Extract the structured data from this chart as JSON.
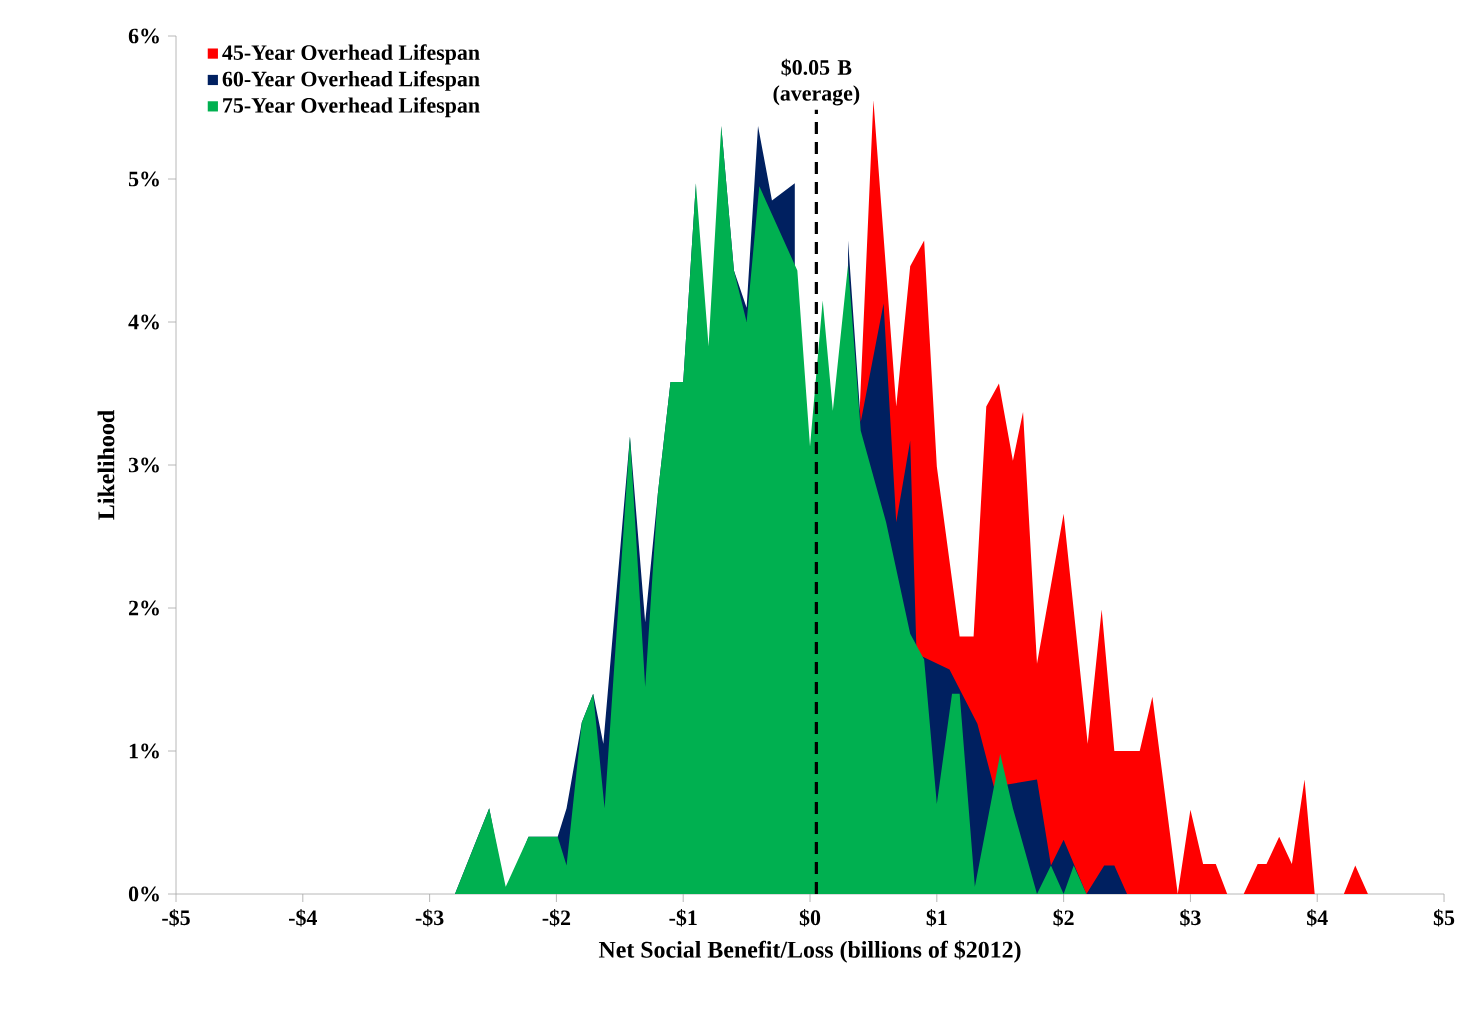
{
  "chart_data": {
    "type": "area",
    "xlabel": "Net Social Benefit/Loss (billions of $2012)",
    "ylabel": "Likelihood",
    "xlim": [
      -5,
      5
    ],
    "xticks": [
      {
        "value": -5,
        "label": "-$5"
      },
      {
        "value": -4,
        "label": "-$4"
      },
      {
        "value": -3,
        "label": "-$3"
      },
      {
        "value": -2,
        "label": "-$2"
      },
      {
        "value": -1,
        "label": "-$1"
      },
      {
        "value": 0,
        "label": "$0"
      },
      {
        "value": 1,
        "label": "$1"
      },
      {
        "value": 2,
        "label": "$2"
      },
      {
        "value": 3,
        "label": "$3"
      },
      {
        "value": 4,
        "label": "$4"
      },
      {
        "value": 5,
        "label": "$5"
      }
    ],
    "ylim": [
      0,
      6
    ],
    "yticks": [
      {
        "value": 0,
        "label": "0%"
      },
      {
        "value": 1,
        "label": "1%"
      },
      {
        "value": 2,
        "label": "2%"
      },
      {
        "value": 3,
        "label": "3%"
      },
      {
        "value": 4,
        "label": "4%"
      },
      {
        "value": 5,
        "label": "5%"
      },
      {
        "value": 6,
        "label": "6%"
      }
    ],
    "legend": "top left",
    "grid": false,
    "ref_lines": [
      {
        "axis": "x",
        "value": 0.05,
        "label": "$0.05 B (average)",
        "color": "#000000",
        "line_style": "dashed"
      }
    ],
    "series": [
      {
        "name": "45-Year Overhead Lifespan",
        "color": "#ff0000",
        "x": [
          0.39,
          0.5,
          0.68,
          0.79,
          0.9,
          1.0,
          1.18,
          1.29,
          1.39,
          1.49,
          1.6,
          1.68,
          1.79,
          2.0,
          2.19,
          2.3,
          2.4,
          2.6,
          2.7,
          2.9,
          3.0,
          3.1,
          3.2,
          3.29,
          3.42,
          3.53,
          3.6,
          3.7,
          3.8,
          3.9,
          3.98,
          4.21,
          4.3,
          4.4
        ],
        "values": [
          3.35,
          5.55,
          3.41,
          4.39,
          4.57,
          2.99,
          1.8,
          1.8,
          3.41,
          3.57,
          3.03,
          3.37,
          1.61,
          2.66,
          1.05,
          1.99,
          1.0,
          1.0,
          1.38,
          0,
          0.59,
          0.21,
          0.21,
          0,
          0,
          0.21,
          0.21,
          0.4,
          0.21,
          0.8,
          0,
          0,
          0.2,
          0
        ]
      },
      {
        "name": "60-Year Overhead Lifespan",
        "color": "#002060",
        "x": [
          -2.8,
          -2.53,
          -2.4,
          -2.22,
          -1.99,
          -1.92,
          -1.8,
          -1.71,
          -1.63,
          -1.42,
          -1.3,
          -1.2,
          -1.1,
          -1.0,
          -0.9,
          -0.8,
          -0.7,
          -0.6,
          -0.5,
          -0.41,
          -0.3,
          -0.12,
          0.0,
          0.1,
          0.18,
          0.3,
          0.4,
          0.58,
          0.68,
          0.79,
          0.84,
          1.1,
          1.32,
          1.45,
          1.79,
          1.9,
          2.0,
          2.18,
          2.32,
          2.4,
          2.5
        ],
        "values": [
          0,
          0.6,
          0,
          0.4,
          0.4,
          0.6,
          1.2,
          1.4,
          1.05,
          3.2,
          1.9,
          2.8,
          3.58,
          3.58,
          4.97,
          null,
          5.37,
          4.36,
          4.1,
          5.37,
          4.85,
          4.97,
          null,
          null,
          null,
          4.57,
          3.3,
          4.13,
          2.6,
          3.17,
          1.68,
          1.57,
          1.19,
          0.75,
          0.8,
          0.2,
          0.38,
          0,
          0.2,
          0.2,
          0
        ]
      },
      {
        "name": "75-Year Overhead Lifespan",
        "color": "#00b050",
        "x": [
          -2.8,
          -2.53,
          -2.4,
          -2.22,
          -1.99,
          -1.92,
          -1.8,
          -1.71,
          -1.62,
          -1.42,
          -1.3,
          -1.2,
          -1.1,
          -1.0,
          -0.9,
          -0.8,
          -0.7,
          -0.6,
          -0.5,
          -0.4,
          -0.1,
          0.0,
          0.1,
          0.18,
          0.3,
          0.4,
          0.6,
          0.79,
          0.9,
          1.0,
          1.12,
          1.18,
          1.3,
          1.5,
          1.6,
          1.79,
          1.9,
          2.0,
          2.08,
          2.18
        ],
        "values": [
          0,
          0.6,
          0.05,
          0.4,
          0.4,
          0.2,
          1.2,
          1.4,
          0.6,
          3.2,
          1.45,
          2.8,
          3.58,
          3.58,
          4.97,
          3.83,
          5.37,
          4.36,
          4.0,
          4.95,
          4.36,
          3.13,
          4.15,
          3.38,
          4.4,
          3.24,
          2.6,
          1.82,
          1.64,
          0.63,
          1.4,
          1.4,
          0.05,
          0.98,
          0.6,
          0,
          0.2,
          0,
          0.2,
          0
        ]
      }
    ]
  }
}
